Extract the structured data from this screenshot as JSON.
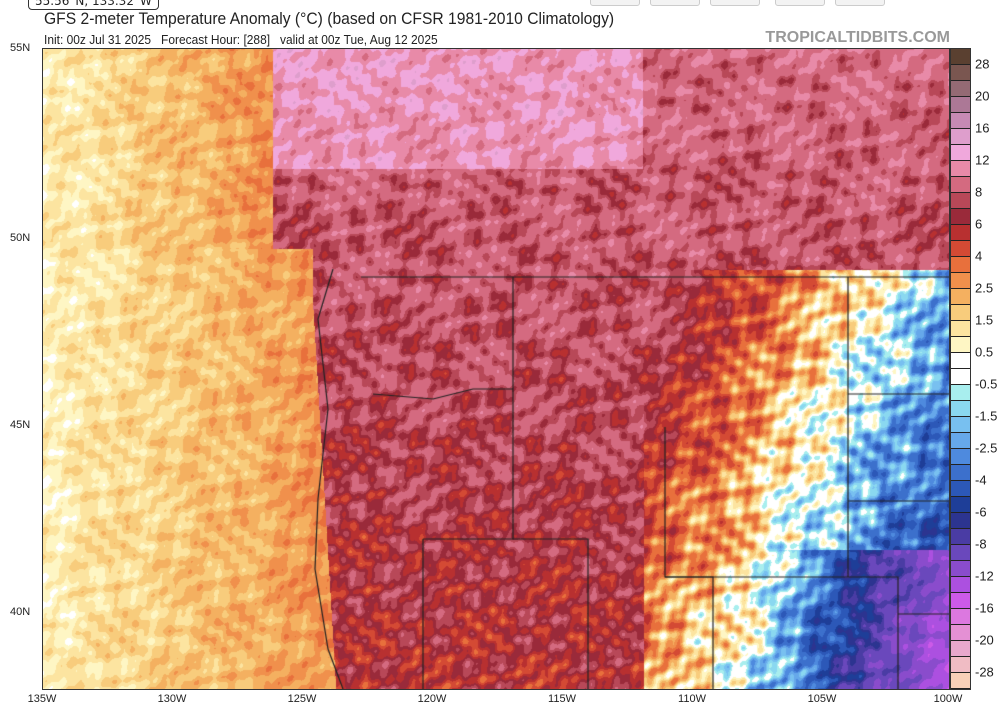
{
  "tooltip": "55.56°N, 133.32°W",
  "title": "GFS 2-meter Temperature Anomaly (°C) (based on CFSR 1981-2010 Climatology)",
  "subtitle": {
    "init": "Init: 00z Jul 31 2025",
    "forecast_hour": "Forecast Hour: [288]",
    "valid": "valid at 00z Tue, Aug 12 2025"
  },
  "brand": "TROPICALTIDBITS.COM",
  "lat_labels": [
    "55N",
    "50N",
    "45N",
    "40N"
  ],
  "lon_labels": [
    "135W",
    "130W",
    "125W",
    "120W",
    "115W",
    "110W",
    "105W",
    "100W"
  ],
  "colorbar": {
    "labels": [
      "28",
      "20",
      "16",
      "12",
      "8",
      "6",
      "4",
      "2.5",
      "1.5",
      "0.5",
      "-0.5",
      "-1.5",
      "-2.5",
      "-4",
      "-6",
      "-8",
      "-12",
      "-16",
      "-20",
      "-28"
    ],
    "colors": [
      "#5a4030",
      "#7a5650",
      "#946a74",
      "#ac7896",
      "#c68ab4",
      "#de9ecc",
      "#f0a8dc",
      "#e88aa8",
      "#d46a80",
      "#b84858",
      "#9a2a3a",
      "#b83030",
      "#d44a34",
      "#e8703c",
      "#f0904c",
      "#f4b060",
      "#f8cc7c",
      "#fce4a0",
      "#fef6c4",
      "#ffffff",
      "#ffffff",
      "#a8eeee",
      "#8ad8f0",
      "#78c0f0",
      "#66a8ea",
      "#4e8ade",
      "#3c70cc",
      "#2c58b8",
      "#1e3e98",
      "#2c3490",
      "#4a3ca4",
      "#6a48bc",
      "#8a4ccc",
      "#ac50e0",
      "#cc5ae8",
      "#dc78e0",
      "#e490d4",
      "#e8a8cc",
      "#f0bcc4",
      "#f8d0b8"
    ]
  }
}
